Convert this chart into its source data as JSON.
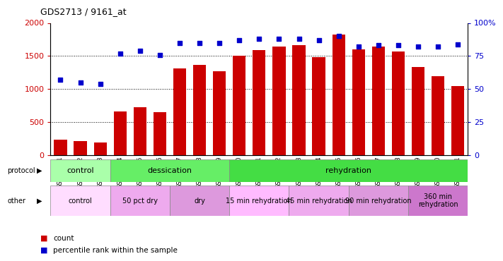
{
  "title": "GDS2713 / 9161_at",
  "samples": [
    "GSM21661",
    "GSM21662",
    "GSM21663",
    "GSM21664",
    "GSM21665",
    "GSM21666",
    "GSM21667",
    "GSM21668",
    "GSM21669",
    "GSM21670",
    "GSM21671",
    "GSM21672",
    "GSM21673",
    "GSM21674",
    "GSM21675",
    "GSM21676",
    "GSM21677",
    "GSM21678",
    "GSM21679",
    "GSM21680",
    "GSM21681"
  ],
  "counts": [
    240,
    210,
    195,
    660,
    730,
    650,
    1310,
    1370,
    1270,
    1500,
    1590,
    1640,
    1660,
    1480,
    1820,
    1600,
    1640,
    1570,
    1330,
    1190,
    1050
  ],
  "percentiles": [
    57,
    55,
    54,
    77,
    79,
    76,
    85,
    85,
    85,
    87,
    88,
    88,
    88,
    87,
    90,
    82,
    83,
    83,
    82,
    82,
    84
  ],
  "bar_color": "#cc0000",
  "dot_color": "#0000cc",
  "ylim_left": [
    0,
    2000
  ],
  "ylim_right": [
    0,
    100
  ],
  "yticks_left": [
    0,
    500,
    1000,
    1500,
    2000
  ],
  "yticks_right": [
    0,
    25,
    50,
    75,
    100
  ],
  "ytick_labels_right": [
    "0",
    "25",
    "50",
    "75",
    "100%"
  ],
  "protocol_groups": [
    {
      "label": "control",
      "start": 0,
      "end": 3,
      "color": "#aaffaa"
    },
    {
      "label": "dessication",
      "start": 3,
      "end": 9,
      "color": "#66ee66"
    },
    {
      "label": "rehydration",
      "start": 9,
      "end": 21,
      "color": "#44dd44"
    }
  ],
  "other_groups": [
    {
      "label": "control",
      "start": 0,
      "end": 3,
      "color": "#ffddff"
    },
    {
      "label": "50 pct dry",
      "start": 3,
      "end": 6,
      "color": "#eeaaee"
    },
    {
      "label": "dry",
      "start": 6,
      "end": 9,
      "color": "#dd99dd"
    },
    {
      "label": "15 min rehydration",
      "start": 9,
      "end": 12,
      "color": "#ffbbff"
    },
    {
      "label": "45 min rehydration",
      "start": 12,
      "end": 15,
      "color": "#eeaaee"
    },
    {
      "label": "90 min rehydration",
      "start": 15,
      "end": 18,
      "color": "#dd99dd"
    },
    {
      "label": "360 min\nrehydration",
      "start": 18,
      "end": 21,
      "color": "#cc77cc"
    }
  ],
  "legend_count_color": "#cc0000",
  "legend_dot_color": "#0000cc",
  "bg_color": "#ffffff",
  "tick_label_color_left": "#cc0000",
  "tick_label_color_right": "#0000cc"
}
